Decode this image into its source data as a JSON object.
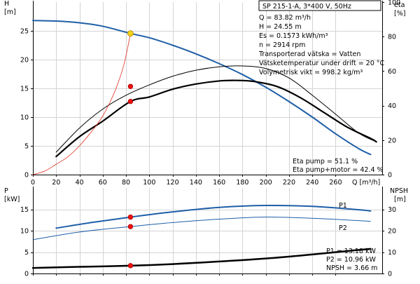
{
  "header": {
    "title": "SP 215-1-A, 3*400 V, 50Hz"
  },
  "colors": {
    "blue": "#1f5fa8",
    "black": "#000000",
    "red_line": "#e03020",
    "marker_red": "#ee1111",
    "marker_yellow": "#f2d21a",
    "grid": "#d4d4d4"
  },
  "chart_data": [
    {
      "type": "line",
      "title": "",
      "x": {
        "label": "Q [m³/h]",
        "range": [
          0,
          300
        ],
        "ticks": [
          0,
          20,
          40,
          60,
          80,
          100,
          120,
          140,
          160,
          180,
          200,
          220,
          240,
          260
        ]
      },
      "y_left": {
        "label": "H",
        "unit": "[m]",
        "range": [
          0,
          30
        ],
        "ticks": [
          0,
          5,
          10,
          15,
          20,
          25
        ]
      },
      "y_right": {
        "label": "eta",
        "unit": "[%]",
        "range": [
          0,
          100
        ],
        "ticks": [
          0,
          20,
          40,
          60,
          80,
          100
        ]
      },
      "grid": true,
      "series": [
        {
          "axis": "left",
          "color": "#1f5fa8",
          "width": 2,
          "points": [
            [
              0,
              26.8
            ],
            [
              20,
              26.7
            ],
            [
              40,
              26.4
            ],
            [
              60,
              25.8
            ],
            [
              83.82,
              24.55
            ],
            [
              100,
              23.8
            ],
            [
              120,
              22.5
            ],
            [
              140,
              21.0
            ],
            [
              160,
              19.3
            ],
            [
              180,
              17.4
            ],
            [
              200,
              15.2
            ],
            [
              220,
              12.7
            ],
            [
              240,
              10.0
            ],
            [
              260,
              7.1
            ],
            [
              280,
              4.5
            ],
            [
              290,
              3.5
            ]
          ]
        },
        {
          "axis": "right",
          "color": "#000000",
          "width": 1,
          "points": [
            [
              20,
              13
            ],
            [
              40,
              27
            ],
            [
              60,
              38
            ],
            [
              80,
              46
            ],
            [
              100,
              52
            ],
            [
              120,
              57
            ],
            [
              140,
              60.5
            ],
            [
              160,
              62.5
            ],
            [
              180,
              63
            ],
            [
              200,
              61.5
            ],
            [
              220,
              56
            ],
            [
              240,
              46
            ],
            [
              260,
              35
            ],
            [
              280,
              24
            ],
            [
              295,
              19
            ]
          ]
        },
        {
          "axis": "right",
          "color": "#000000",
          "width": 2.2,
          "points": [
            [
              20,
              10.5
            ],
            [
              40,
              22
            ],
            [
              60,
              31
            ],
            [
              83.82,
              42.4
            ],
            [
              100,
              45
            ],
            [
              120,
              49.5
            ],
            [
              140,
              52.5
            ],
            [
              160,
              54.3
            ],
            [
              175,
              54.6
            ],
            [
              190,
              54
            ],
            [
              210,
              51
            ],
            [
              230,
              44.5
            ],
            [
              250,
              36
            ],
            [
              270,
              27.5
            ],
            [
              290,
              21
            ],
            [
              295,
              19
            ]
          ]
        },
        {
          "axis": "left",
          "color": "#e03020",
          "width": 0.8,
          "points": [
            [
              0,
              0
            ],
            [
              10,
              0.6
            ],
            [
              20,
              1.8
            ],
            [
              30,
              3.1
            ],
            [
              40,
              5.0
            ],
            [
              50,
              7.4
            ],
            [
              60,
              10.2
            ],
            [
              70,
              14.3
            ],
            [
              78,
              19.0
            ],
            [
              83.82,
              24.55
            ]
          ]
        }
      ],
      "markers": [
        {
          "axis": "left",
          "x": 83.82,
          "y": 24.55,
          "color": "#f2d21a"
        },
        {
          "axis": "right",
          "x": 83.82,
          "y": 51.1,
          "color": "#ee1111"
        },
        {
          "axis": "right",
          "x": 83.82,
          "y": 42.4,
          "color": "#ee1111"
        }
      ],
      "info": [
        "Q = 83.82 m³/h",
        "H = 24.55 m",
        "Es = 0.1573 kWh/m³",
        "n = 2914 rpm",
        "Transporterad vätska = Vatten",
        "Vätsketemperatur under drift = 20 °C",
        "Volymetrisk vikt = 998.2 kg/m³"
      ],
      "eta_info": [
        "Eta pump = 51.1 %",
        "Eta pump+motor = 42.4 %"
      ]
    },
    {
      "type": "line",
      "title": "",
      "x": {
        "range": [
          0,
          300
        ],
        "ticks": [
          0,
          20,
          40,
          60,
          80,
          100,
          120,
          140,
          160,
          180,
          200,
          220,
          240,
          260
        ]
      },
      "y_left": {
        "label": "P",
        "unit": "[kW]",
        "range": [
          0,
          20
        ],
        "ticks": [
          0,
          5,
          10,
          15
        ]
      },
      "y_right": {
        "label": "NPSH",
        "unit": "[m]",
        "range": [
          0,
          40
        ],
        "ticks": [
          0,
          10,
          20,
          30
        ]
      },
      "grid": true,
      "series": [
        {
          "name": "P1",
          "axis": "left",
          "color": "#1f5fa8",
          "width": 2,
          "points": [
            [
              20,
              10.6
            ],
            [
              50,
              11.9
            ],
            [
              83.82,
              13.18
            ],
            [
              120,
              14.4
            ],
            [
              160,
              15.45
            ],
            [
              200,
              15.9
            ],
            [
              240,
              15.7
            ],
            [
              280,
              14.9
            ],
            [
              290,
              14.6
            ]
          ]
        },
        {
          "name": "P2",
          "axis": "left",
          "color": "#1f5fa8",
          "width": 1,
          "points": [
            [
              0,
              7.9
            ],
            [
              40,
              9.7
            ],
            [
              83.82,
              10.96
            ],
            [
              120,
              11.9
            ],
            [
              160,
              12.7
            ],
            [
              200,
              13.2
            ],
            [
              240,
              12.9
            ],
            [
              270,
              12.5
            ],
            [
              290,
              12.2
            ]
          ]
        },
        {
          "axis": "right",
          "color": "#000000",
          "width": 2.5,
          "points": [
            [
              0,
              2.6
            ],
            [
              40,
              3.1
            ],
            [
              83.82,
              3.66
            ],
            [
              120,
              4.4
            ],
            [
              160,
              5.6
            ],
            [
              200,
              7.0
            ],
            [
              240,
              8.9
            ],
            [
              270,
              10.5
            ],
            [
              290,
              11.5
            ]
          ]
        }
      ],
      "series_labels": [
        "P1",
        "P2"
      ],
      "markers": [
        {
          "axis": "left",
          "x": 83.82,
          "y": 13.18,
          "color": "#ee1111"
        },
        {
          "axis": "left",
          "x": 83.82,
          "y": 10.96,
          "color": "#ee1111"
        },
        {
          "axis": "right",
          "x": 83.82,
          "y": 3.66,
          "color": "#ee1111"
        }
      ],
      "info": [
        "P1 = 13.18 kW",
        "P2 = 10.96 kW",
        "NPSH = 3.66 m"
      ]
    }
  ]
}
